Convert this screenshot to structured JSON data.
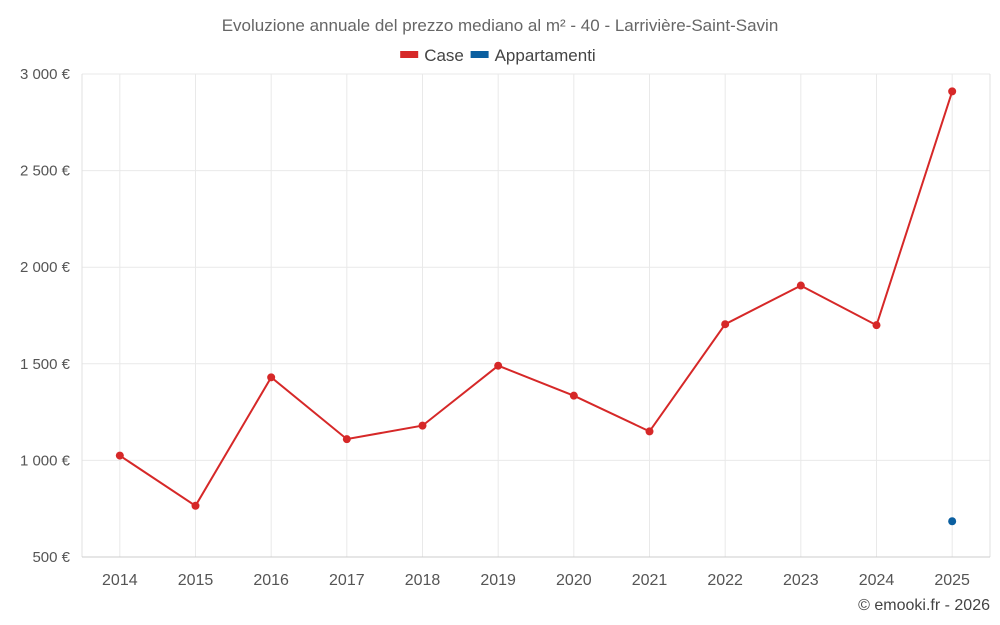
{
  "chart_data": {
    "type": "line",
    "title": "Evoluzione annuale del prezzo mediano al m² - 40 - Larrivière-Saint-Savin",
    "categories": [
      "2014",
      "2015",
      "2016",
      "2017",
      "2018",
      "2019",
      "2020",
      "2021",
      "2022",
      "2023",
      "2024",
      "2025"
    ],
    "series": [
      {
        "name": "Case",
        "color": "#d62828",
        "values": [
          1025,
          765,
          1430,
          1110,
          1180,
          1490,
          1335,
          1150,
          1705,
          1905,
          1700,
          2910
        ]
      },
      {
        "name": "Appartamenti",
        "color": "#0b5fa0",
        "values": [
          null,
          null,
          null,
          null,
          null,
          null,
          null,
          null,
          null,
          null,
          null,
          685
        ]
      }
    ],
    "ylim": [
      500,
      3000
    ],
    "yticks": [
      500,
      1000,
      1500,
      2000,
      2500,
      3000
    ],
    "ytick_labels": [
      "500 €",
      "1 000 €",
      "1 500 €",
      "2 000 €",
      "2 500 €",
      "3 000 €"
    ],
    "xlabel": "",
    "ylabel": "",
    "grid": true,
    "legend": "top-center"
  },
  "credit": "© emooki.fr - 2026"
}
